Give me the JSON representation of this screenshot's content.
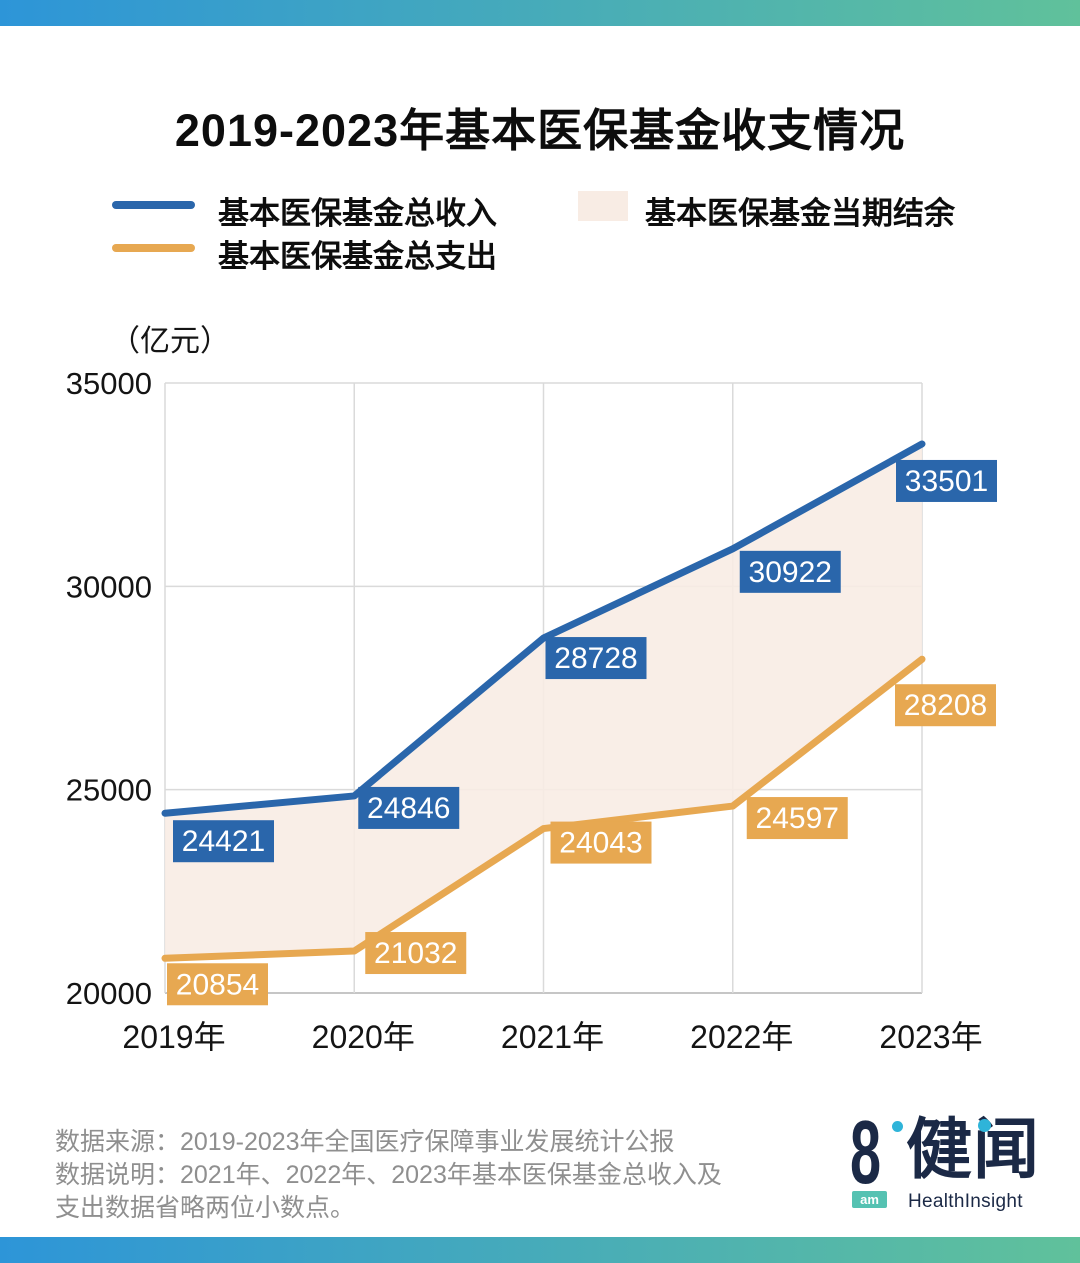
{
  "title": "2019-2023年基本医保基金收支情况",
  "unit_label": "（亿元）",
  "legend": [
    {
      "label": "基本医保基金总收入",
      "type": "line"
    },
    {
      "label": "基本医保基金总支出",
      "type": "line"
    },
    {
      "label": "基本医保基金当期结余",
      "type": "area"
    }
  ],
  "chart_data": {
    "type": "line",
    "categories": [
      "2019年",
      "2020年",
      "2021年",
      "2022年",
      "2023年"
    ],
    "series": [
      {
        "name": "基本医保基金总收入",
        "color": "#2A66AB",
        "values": [
          24421,
          24846,
          28728,
          30922,
          33501
        ]
      },
      {
        "name": "基本医保基金总支出",
        "color": "#E7A851",
        "values": [
          20854,
          21032,
          24043,
          24597,
          28208
        ]
      }
    ],
    "area_between": {
      "name": "基本医保基金当期结余",
      "color": "#F8ECE4"
    },
    "ylabel": "（亿元）",
    "ylim": [
      20000,
      35000
    ],
    "yticks": [
      20000,
      25000,
      30000,
      35000
    ],
    "grid": true,
    "legend_position": "top"
  },
  "footer": {
    "source_line": "数据来源：2019-2023年全国医疗保障事业发展统计公报",
    "note_line1": "数据说明：2021年、2022年、2023年基本医保基金总收入及",
    "note_line2": "支出数据省略两位小数点。"
  },
  "logo": {
    "number": "8",
    "am": "am",
    "cn": "健闻",
    "en": "HealthInsight"
  },
  "colors": {
    "income_blue": "#2A66AB",
    "expense_orange": "#E7A851",
    "balance_area": "#F8ECE4",
    "grid": "#DADADA",
    "axis_bottom": "#C6C6C6",
    "tick_text": "#141414",
    "label_text": "#FFFFFF",
    "bar_gradient_left": "#2D95D8",
    "bar_gradient_right": "#60C19B",
    "footer_gray": "#8F8F8F",
    "logo_navy": "#1B2946",
    "logo_dot_cyan": "#2FB4D9",
    "logo_am_teal": "#55C2B2"
  }
}
